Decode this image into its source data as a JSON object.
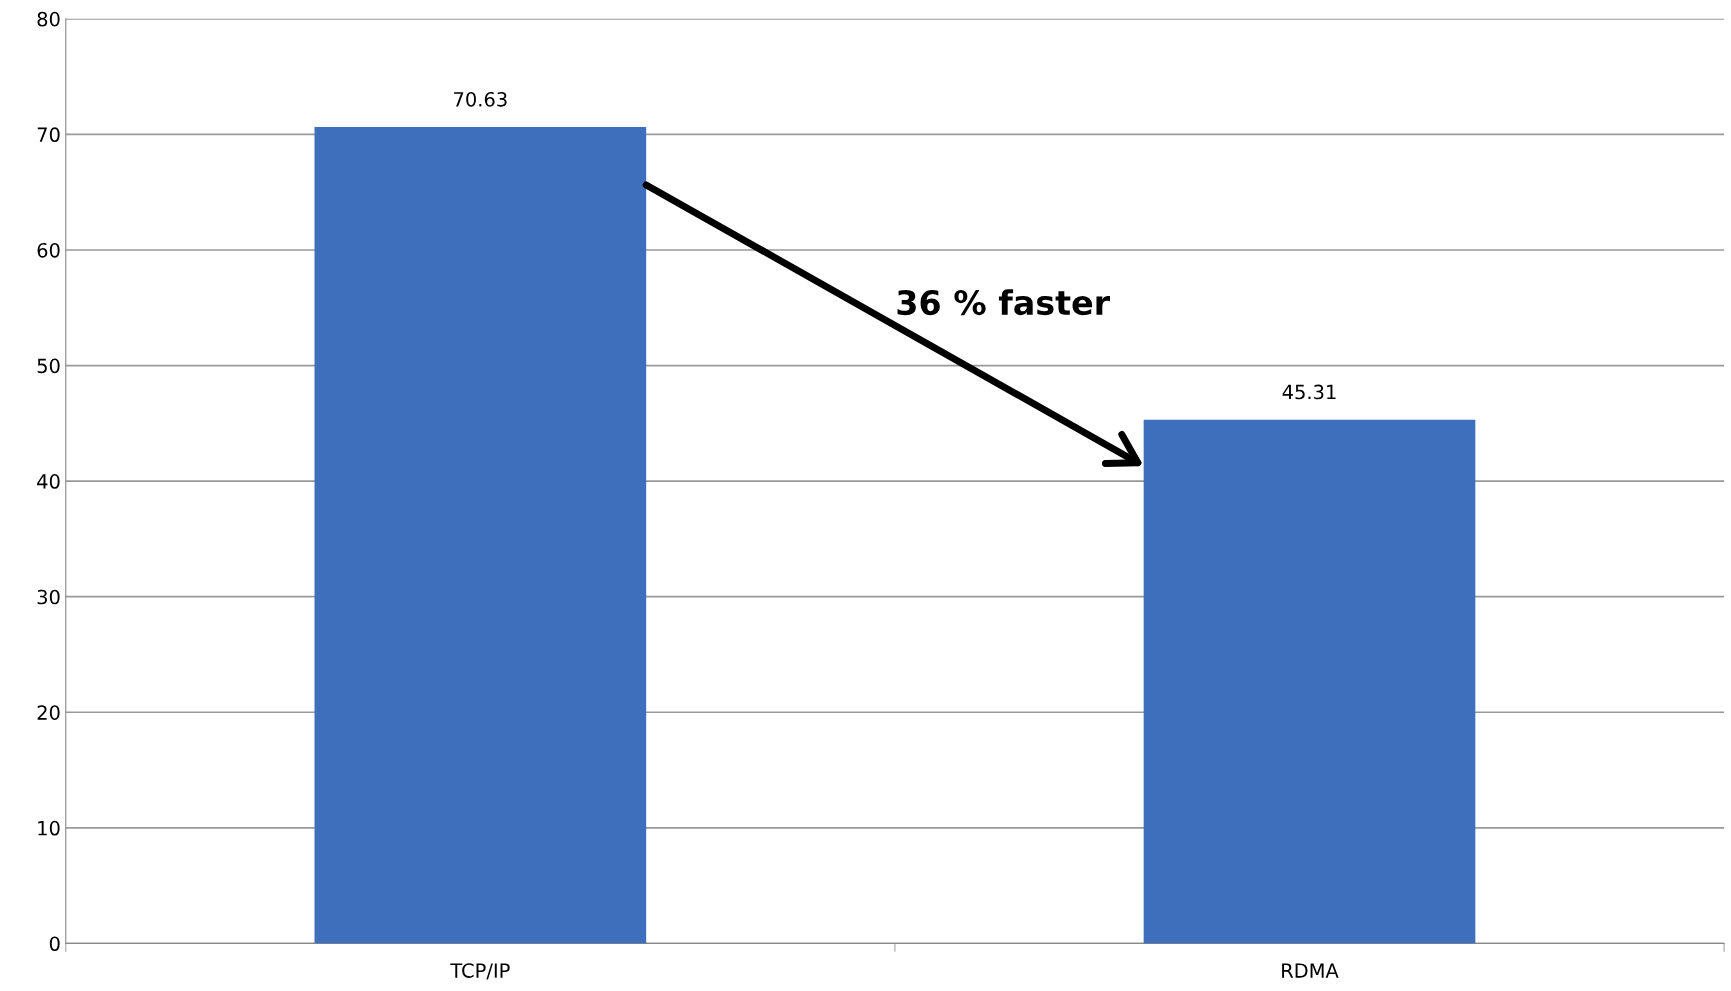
{
  "chart_data": {
    "type": "bar",
    "categories": [
      "TCP/IP",
      "RDMA"
    ],
    "values": [
      70.63,
      45.31
    ],
    "color": "#3d6fbd",
    "data_labels": true,
    "ylim": [
      0,
      80
    ],
    "yticks": [
      0,
      10,
      20,
      30,
      40,
      50,
      60,
      70,
      80
    ],
    "grid": "y",
    "annotations": [
      "36 % faster"
    ]
  }
}
